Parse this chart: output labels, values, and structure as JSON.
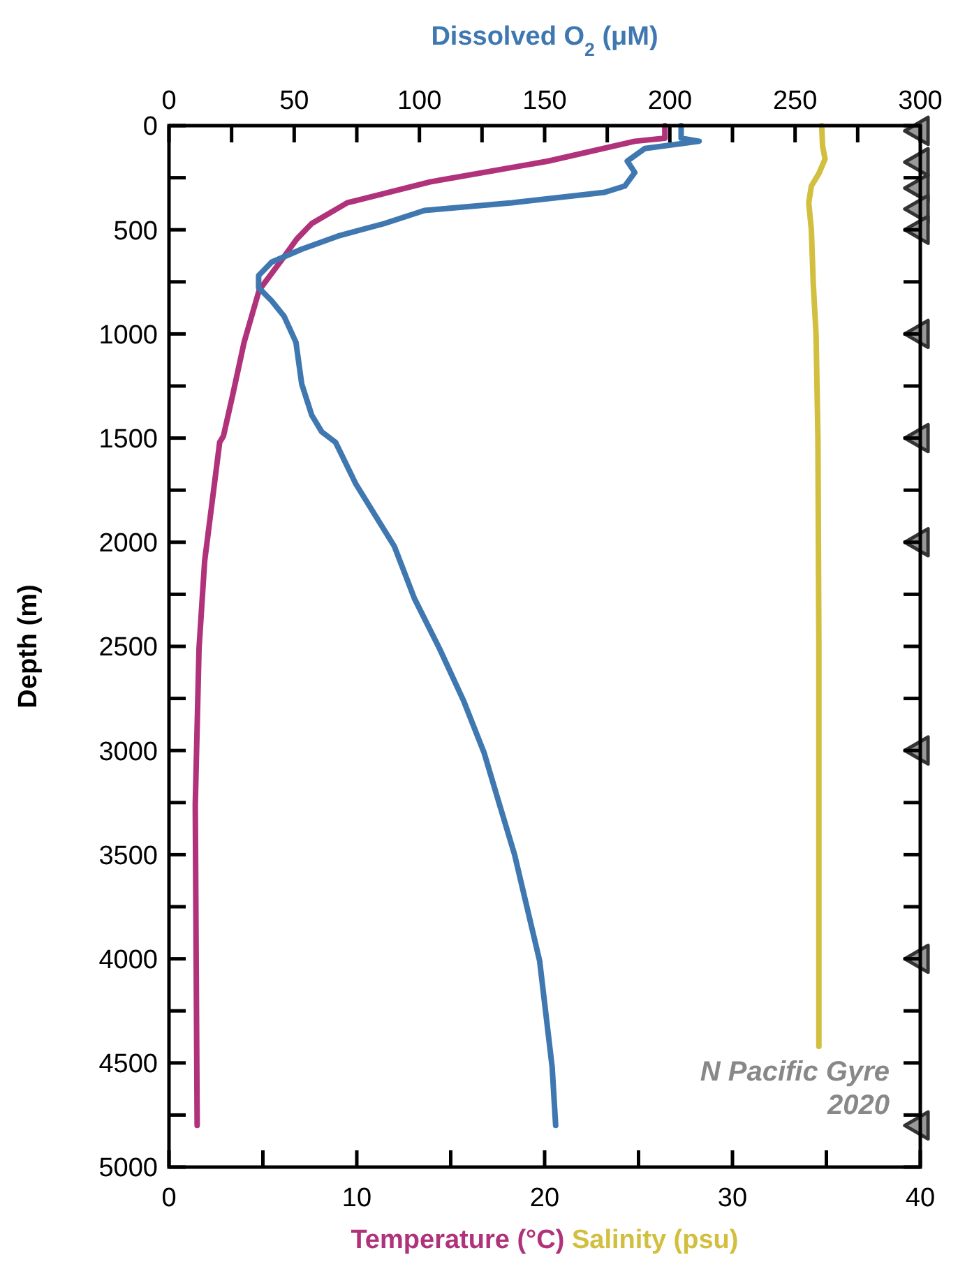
{
  "chart_data": {
    "type": "line",
    "x2label": "Dissolved O$_{2}$ (μM)",
    "xlabel": [
      "Temperature (°C)",
      "Salinity (psu)"
    ],
    "ylabel": "Depth (m)",
    "xlim": [
      0,
      40
    ],
    "xticks": [
      0,
      {
        "value": 5,
        "label": null
      },
      10,
      {
        "value": 15,
        "label": null
      },
      20,
      {
        "value": 25,
        "label": null
      },
      30,
      {
        "value": 35,
        "label": null
      },
      40
    ],
    "x2lim": [
      0,
      300
    ],
    "x2ticks": [
      0,
      {
        "value": 25,
        "label": null
      },
      50,
      {
        "value": 75,
        "label": null
      },
      100,
      {
        "value": 125,
        "label": null
      },
      150,
      {
        "value": 175,
        "label": null
      },
      200,
      {
        "value": 225,
        "label": null
      },
      250,
      {
        "value": 275,
        "label": null
      },
      300
    ],
    "ylim": [
      5000,
      0
    ],
    "yticks": [
      0,
      {
        "value": 250,
        "label": null
      },
      500,
      {
        "value": 750,
        "label": null
      },
      1000,
      {
        "value": 1250,
        "label": null
      },
      1500,
      {
        "value": 1750,
        "label": null
      },
      2000,
      {
        "value": 2250,
        "label": null
      },
      2500,
      {
        "value": 2750,
        "label": null
      },
      3000,
      {
        "value": 3250,
        "label": null
      },
      3500,
      {
        "value": 3750,
        "label": null
      },
      4000,
      {
        "value": 4250,
        "label": null
      },
      4500,
      {
        "value": 4750,
        "label": null
      },
      5000
    ],
    "grid": false,
    "line_style": "solid",
    "marker": "none",
    "series": [
      {
        "color": "#b0327a",
        "x": [
          26.4,
          26.4,
          24.8,
          20.2,
          13.9,
          9.5,
          7.6,
          6.8,
          6.0,
          4.8,
          4.0,
          3.4,
          2.9,
          2.7,
          1.9,
          1.6,
          1.4,
          1.5
        ],
        "values": [
          0,
          60,
          75,
          170,
          270,
          370,
          470,
          545,
          645,
          790,
          1040,
          1290,
          1490,
          1520,
          2090,
          2510,
          3260,
          4800
        ]
      },
      {
        "color": "#d2bf3f",
        "x": [
          34.75,
          34.8,
          34.93,
          34.6,
          34.2,
          34.06,
          34.2,
          34.3,
          34.45,
          34.55,
          34.6,
          34.6
        ],
        "values": [
          0,
          100,
          160,
          230,
          290,
          370,
          500,
          755,
          1000,
          1500,
          2500,
          4420
        ]
      },
      {
        "color": "#3f78b0",
        "axis": "x2",
        "x": [
          204.5,
          204.5,
          211.7,
          190,
          183,
          186,
          182,
          174,
          137,
          102,
          86,
          67.5,
          53,
          41,
          35.8,
          35.8,
          41,
          46,
          50.7,
          53,
          57,
          61,
          66.5,
          74.6,
          90,
          98,
          108,
          117.6,
          125.8,
          132,
          138,
          148,
          153,
          154.4
        ],
        "values": [
          0,
          60,
          75,
          110,
          170,
          225,
          290,
          320,
          370,
          407,
          470,
          530,
          593,
          655,
          720,
          778,
          841,
          916,
          1040,
          1240,
          1390,
          1470,
          1520,
          1720,
          2020,
          2270,
          2510,
          2760,
          3010,
          3260,
          3500,
          4010,
          4520,
          4800
        ]
      },
      {
        "type": "scatter",
        "marker": "triangle",
        "color": "#999999",
        "x": [
          40,
          40,
          40,
          40,
          40,
          40,
          40,
          40,
          40,
          40,
          40
        ],
        "values": [
          25,
          175,
          300,
          400,
          500,
          1000,
          1500,
          2000,
          3000,
          4000,
          4800
        ]
      }
    ],
    "annotations": [
      "N Pacific Gyre\n2020"
    ]
  }
}
